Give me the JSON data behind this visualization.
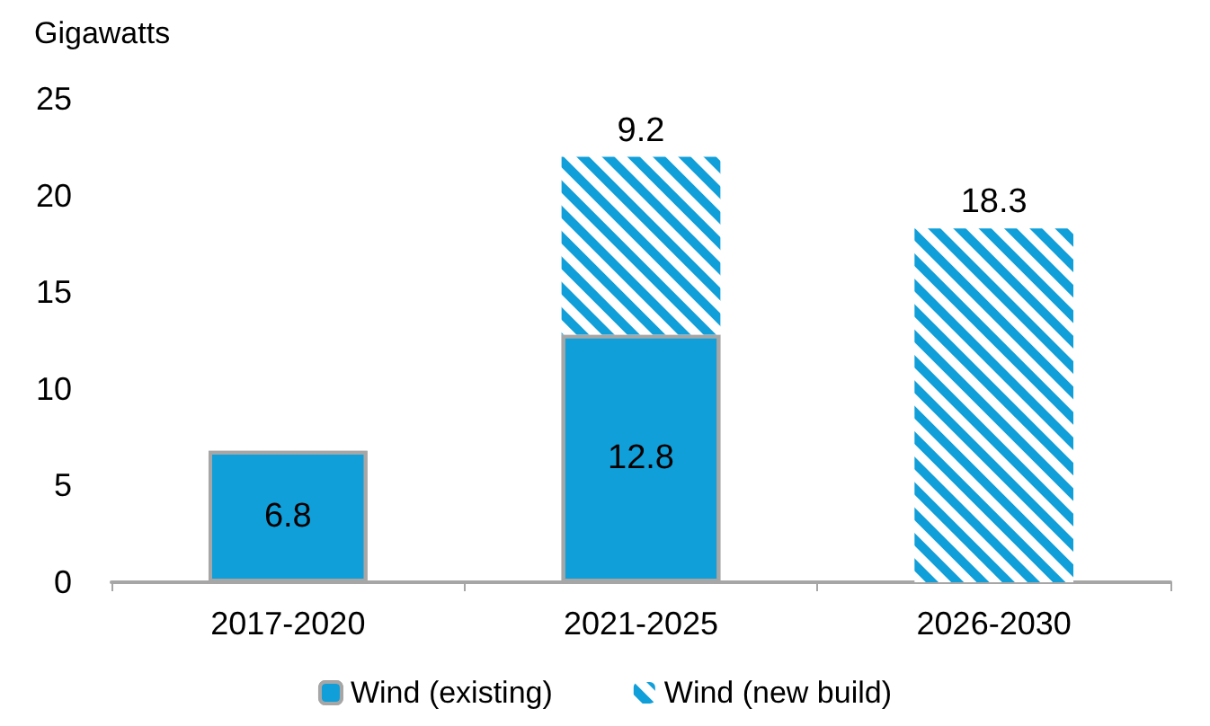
{
  "chart_data": {
    "type": "bar",
    "ylabel": "Gigawatts",
    "categories": [
      "2017-2020",
      "2021-2025",
      "2026-2030"
    ],
    "stacked": true,
    "series": [
      {
        "name": "Wind (existing)",
        "color": "#109fd9",
        "values": [
          6.8,
          12.8,
          null
        ]
      },
      {
        "name": "Wind (new build)",
        "color": "#109fd9",
        "values": [
          null,
          9.2,
          18.3
        ]
      }
    ],
    "ylim": [
      0,
      25
    ],
    "yticks": [
      0,
      5,
      10,
      15,
      20,
      25
    ],
    "grid": false,
    "legend": "bottom",
    "data_labels": true
  }
}
